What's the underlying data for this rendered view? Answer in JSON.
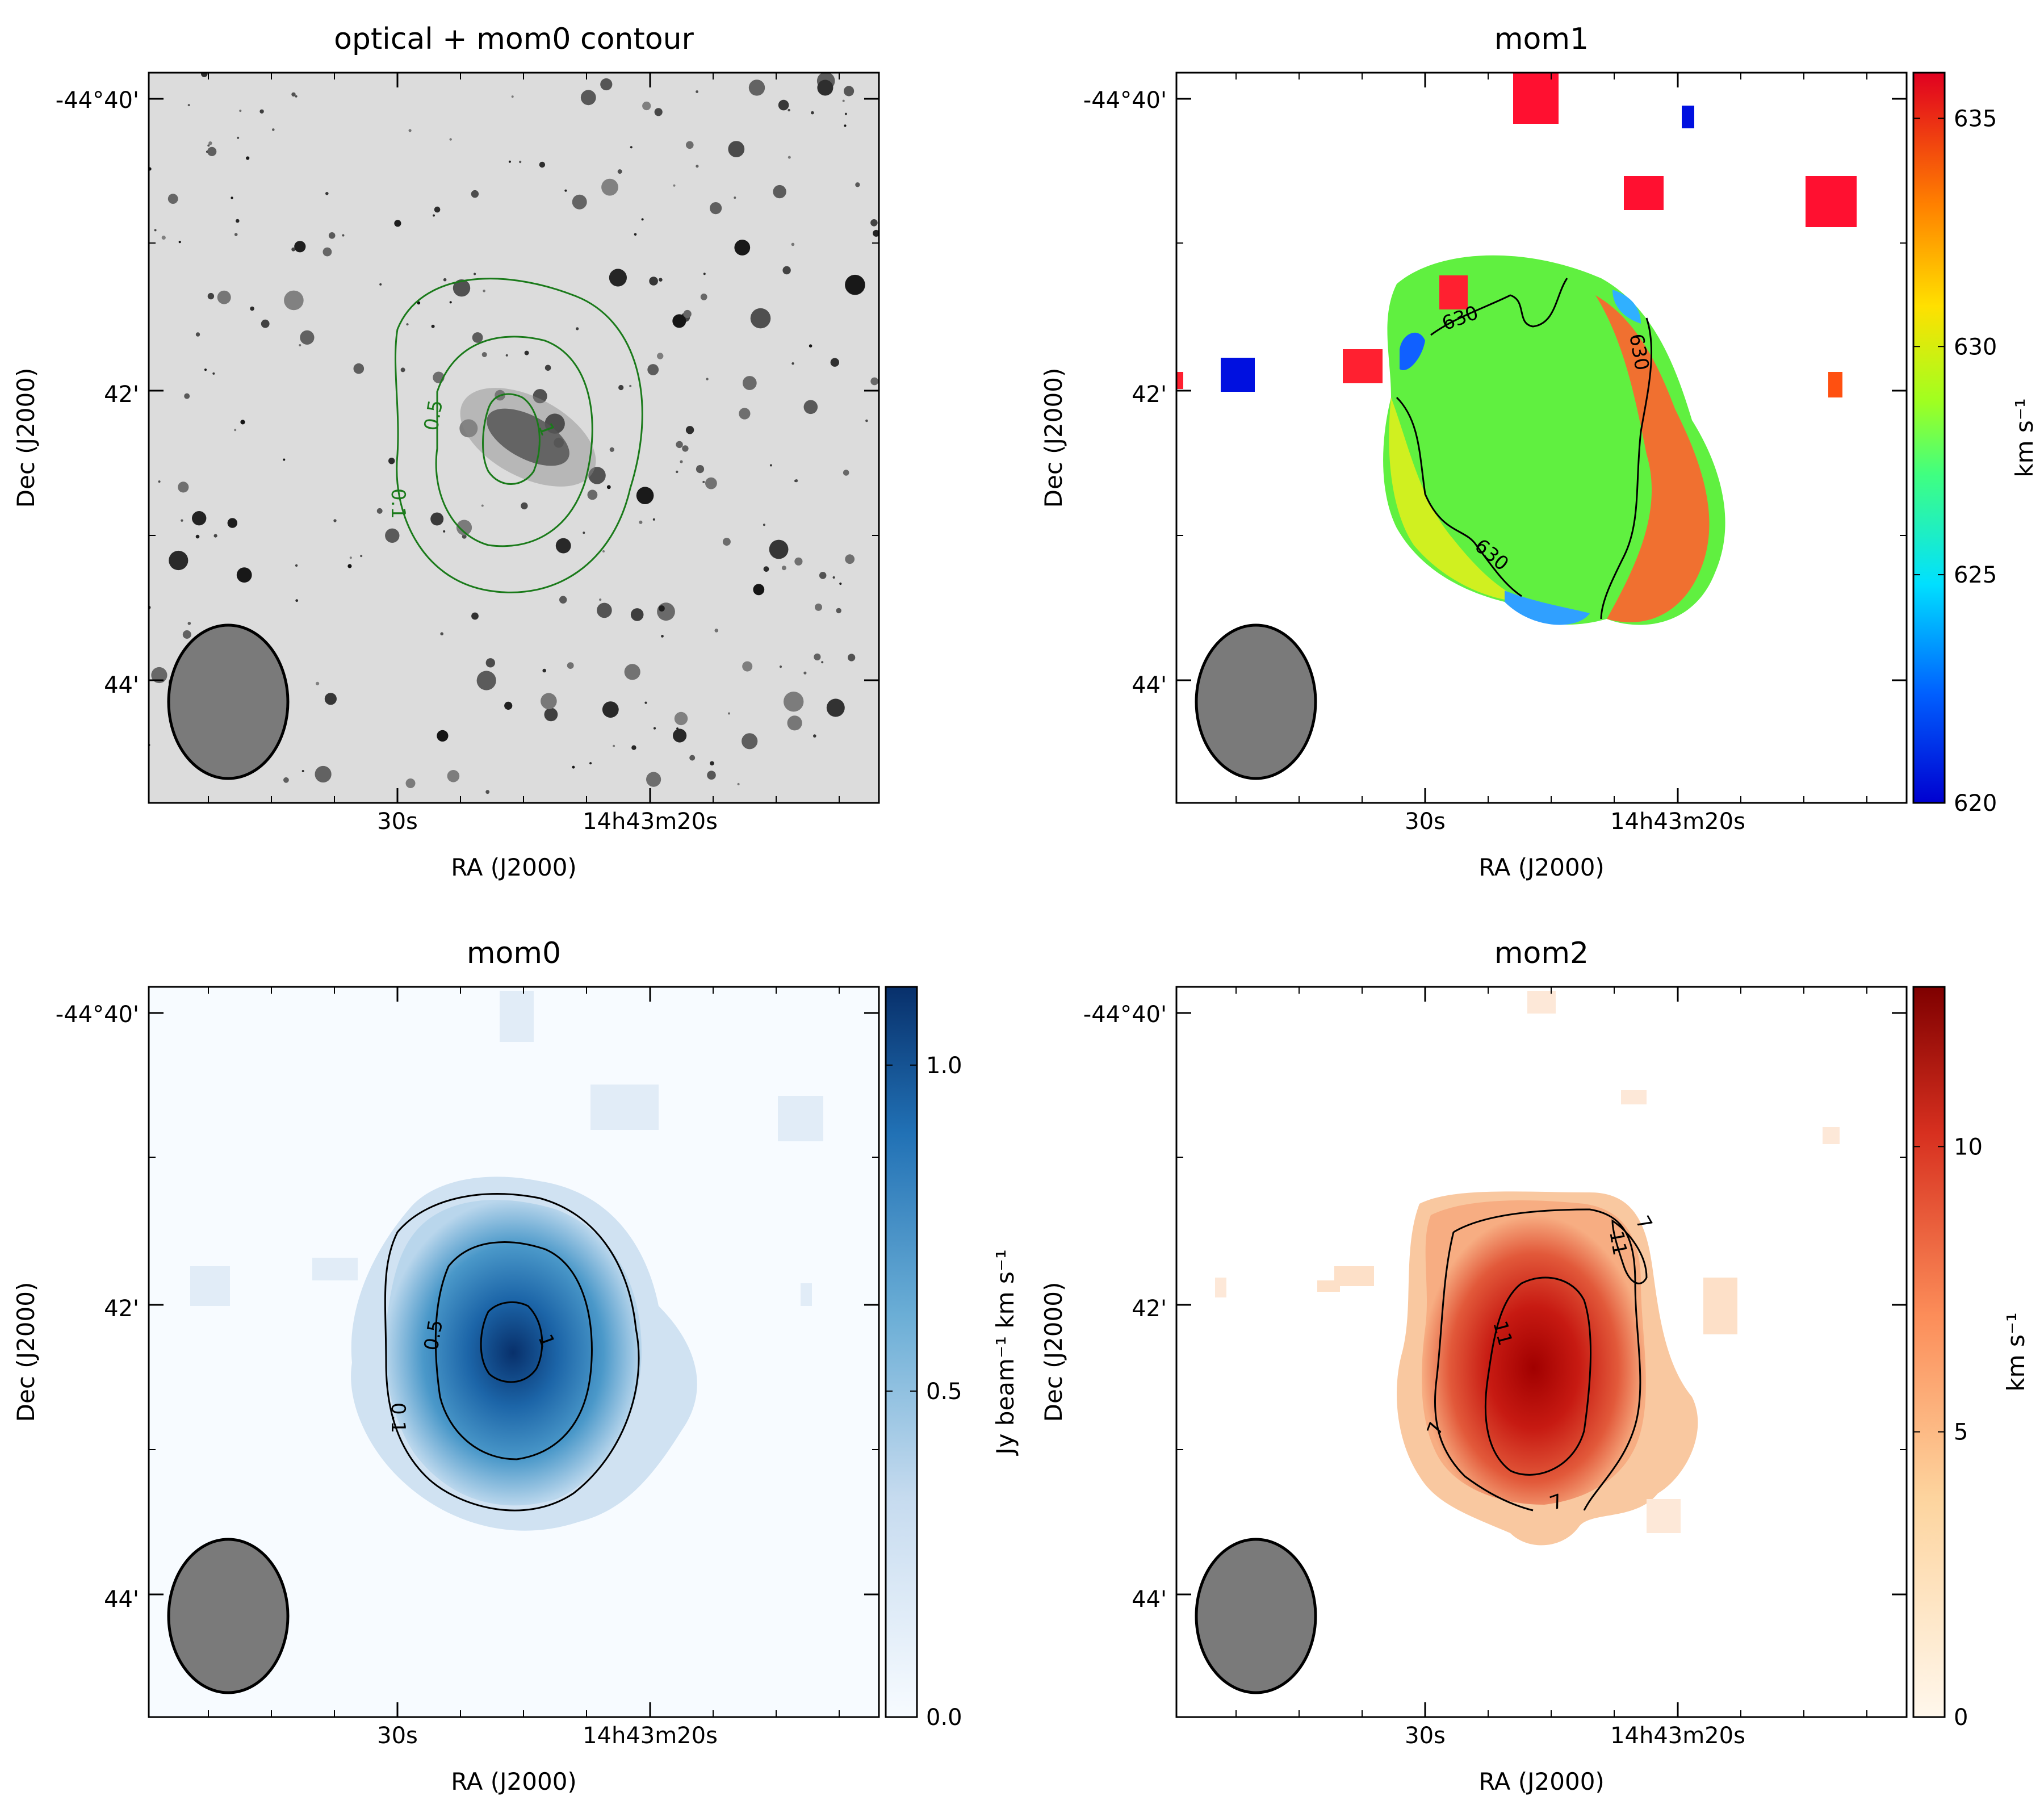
{
  "figure": {
    "panels": [
      {
        "id": "optical",
        "title": "optical + mom0 contour",
        "xlabel": "RA (J2000)",
        "ylabel": "Dec (J2000)",
        "x_ticks": [
          "30s",
          "14h43m20s"
        ],
        "y_ticks": [
          "-44°40'",
          "42'",
          "44'"
        ],
        "contour_color": "#1a7a1a",
        "contour_levels": [
          "0.1",
          "0.5",
          "1"
        ],
        "colorbar": null
      },
      {
        "id": "mom1",
        "title": "mom1",
        "xlabel": "RA (J2000)",
        "ylabel": "Dec (J2000)",
        "x_ticks": [
          "30s",
          "14h43m20s"
        ],
        "y_ticks": [
          "-44°40'",
          "42'",
          "44'"
        ],
        "contour_color": "#000000",
        "contour_levels": [
          "630",
          "630",
          "630"
        ],
        "colorbar": {
          "label": "km s⁻¹",
          "ticks": [
            "620",
            "625",
            "630",
            "635"
          ],
          "tick_values": [
            620,
            625,
            630,
            635
          ],
          "range": [
            620,
            636
          ],
          "colormap": "jet"
        }
      },
      {
        "id": "mom0",
        "title": "mom0",
        "xlabel": "RA (J2000)",
        "ylabel": "Dec (J2000)",
        "x_ticks": [
          "30s",
          "14h43m20s"
        ],
        "y_ticks": [
          "-44°40'",
          "42'",
          "44'"
        ],
        "contour_color": "#000000",
        "contour_levels": [
          "0.1",
          "0.5",
          "1"
        ],
        "colorbar": {
          "label": "Jy beam⁻¹ km s⁻¹",
          "ticks": [
            "0.0",
            "0.5",
            "1.0"
          ],
          "tick_values": [
            0.0,
            0.5,
            1.0
          ],
          "range": [
            0.0,
            1.12
          ],
          "colormap": "Blues"
        }
      },
      {
        "id": "mom2",
        "title": "mom2",
        "xlabel": "RA (J2000)",
        "ylabel": "Dec (J2000)",
        "x_ticks": [
          "30s",
          "14h43m20s"
        ],
        "y_ticks": [
          "-44°40'",
          "42'",
          "44'"
        ],
        "contour_color": "#000000",
        "contour_levels": [
          "7",
          "7",
          "7",
          "11",
          "11"
        ],
        "colorbar": {
          "label": "km s⁻¹",
          "ticks": [
            "0",
            "5",
            "10"
          ],
          "tick_values": [
            0,
            5,
            10
          ],
          "range": [
            0,
            12.8
          ],
          "colormap": "OrRd"
        }
      }
    ]
  },
  "chart_data": [
    {
      "type": "heatmap",
      "title": "optical + mom0 contour",
      "xlabel": "RA (J2000)",
      "ylabel": "Dec (J2000)",
      "x_tick_labels": [
        "30s",
        "14h43m20s"
      ],
      "y_tick_labels": [
        "-44°40'",
        "42'",
        "44'"
      ],
      "contour_levels": [
        0.1,
        0.5,
        1
      ],
      "image": "optical greyscale"
    },
    {
      "type": "heatmap",
      "title": "mom1",
      "xlabel": "RA (J2000)",
      "ylabel": "Dec (J2000)",
      "x_tick_labels": [
        "30s",
        "14h43m20s"
      ],
      "y_tick_labels": [
        "-44°40'",
        "42'",
        "44'"
      ],
      "colorbar_label": "km s⁻¹",
      "colorbar_ticks": [
        620,
        625,
        630,
        635
      ],
      "color_range": [
        620,
        636
      ],
      "contour_levels": [
        630
      ]
    },
    {
      "type": "heatmap",
      "title": "mom0",
      "xlabel": "RA (J2000)",
      "ylabel": "Dec (J2000)",
      "x_tick_labels": [
        "30s",
        "14h43m20s"
      ],
      "y_tick_labels": [
        "-44°40'",
        "42'",
        "44'"
      ],
      "colorbar_label": "Jy beam⁻¹ km s⁻¹",
      "colorbar_ticks": [
        0.0,
        0.5,
        1.0
      ],
      "color_range": [
        0.0,
        1.12
      ],
      "contour_levels": [
        0.1,
        0.5,
        1
      ]
    },
    {
      "type": "heatmap",
      "title": "mom2",
      "xlabel": "RA (J2000)",
      "ylabel": "Dec (J2000)",
      "x_tick_labels": [
        "30s",
        "14h43m20s"
      ],
      "y_tick_labels": [
        "-44°40'",
        "42'",
        "44'"
      ],
      "colorbar_label": "km s⁻¹",
      "colorbar_ticks": [
        0,
        5,
        10
      ],
      "color_range": [
        0,
        12.8
      ],
      "contour_levels": [
        7,
        11
      ]
    }
  ]
}
